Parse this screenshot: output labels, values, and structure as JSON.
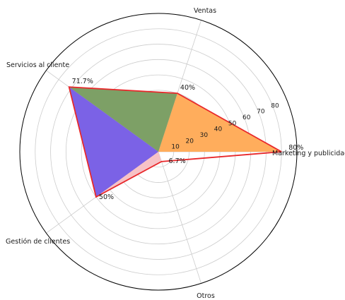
{
  "chart_data": {
    "type": "radar",
    "categories": [
      "Marketing y publicidad",
      "Ventas",
      "Servicios al cliente",
      "Gestión de clientes",
      "Otros"
    ],
    "series": [
      {
        "values": [
          80,
          40,
          71.7,
          50,
          6.7
        ],
        "value_labels": [
          "80%",
          "40%",
          "71.7%",
          "50%",
          "6.7%"
        ],
        "outline_color": "#e8282b"
      }
    ],
    "sector_colors": [
      "#ffad5c",
      "#7da066",
      "#7b62e6",
      "#f7c2c6"
    ],
    "radial_ticks": [
      "10",
      "20",
      "30",
      "40",
      "50",
      "60",
      "70",
      "80"
    ],
    "rmax": 90,
    "grid": true
  }
}
